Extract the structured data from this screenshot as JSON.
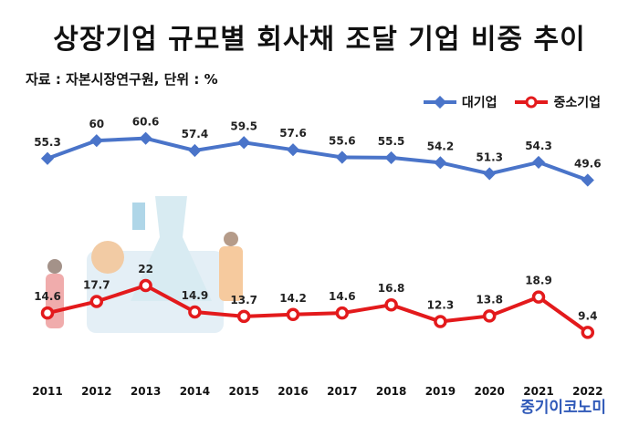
{
  "title": "상장기업 규모별 회사채 조달 기업 비중 추이",
  "source": "자료 : 자본시장연구원, 단위 : %",
  "brand": "중기이코노미",
  "chart_data": {
    "type": "line",
    "title": "상장기업 규모별 회사채 조달 기업 비중 추이",
    "x": [
      "2011",
      "2012",
      "2013",
      "2014",
      "2015",
      "2016",
      "2017",
      "2018",
      "2019",
      "2020",
      "2021",
      "2022"
    ],
    "series": [
      {
        "name": "대기업",
        "color": "#4a74c9",
        "values": [
          55.3,
          60,
          60.6,
          57.4,
          59.5,
          57.6,
          55.6,
          55.5,
          54.2,
          51.3,
          54.3,
          49.6
        ]
      },
      {
        "name": "중소기업",
        "color": "#e31a1c",
        "values": [
          14.6,
          17.7,
          22,
          14.9,
          13.7,
          14.2,
          14.6,
          16.8,
          12.3,
          13.8,
          18.9,
          9.4
        ]
      }
    ],
    "value_labels": [
      [
        "55.3",
        "60",
        "60.6",
        "57.4",
        "59.5",
        "57.6",
        "55.6",
        "55.5",
        "54.2",
        "51.3",
        "54.3",
        "49.6"
      ],
      [
        "14.6",
        "17.7",
        "22",
        "14.9",
        "13.7",
        "14.2",
        "14.6",
        "16.8",
        "12.3",
        "13.8",
        "18.9",
        "9.4"
      ]
    ],
    "legend": "top-right",
    "grid": false
  }
}
